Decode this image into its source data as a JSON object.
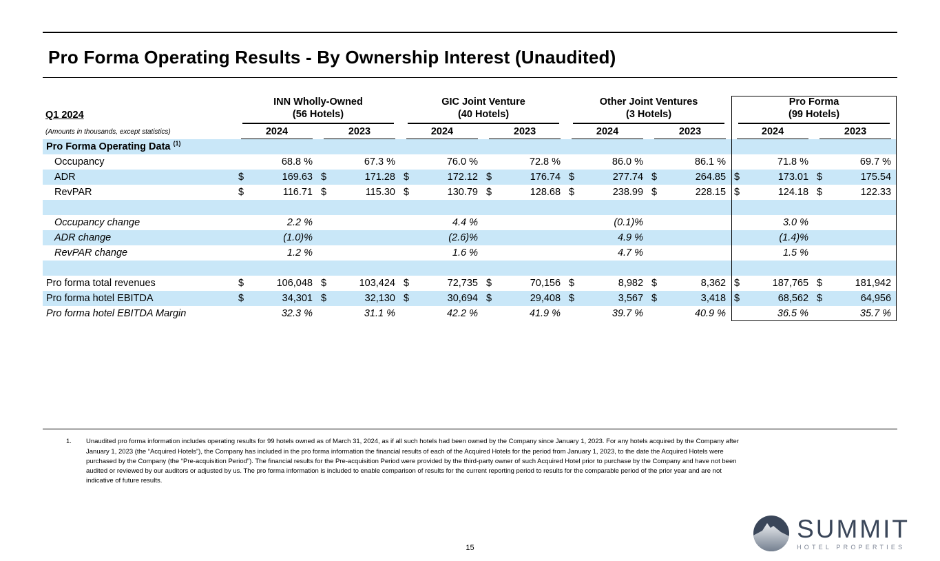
{
  "title": "Pro Forma Operating Results - By Ownership Interest (Unaudited)",
  "table": {
    "period_label": "Q1 2024",
    "amounts_note": "(Amounts in thousands, except statistics)",
    "groups": [
      {
        "name": "INN Wholly-Owned",
        "hotels": "(56 Hotels)",
        "years": [
          "2024",
          "2023"
        ]
      },
      {
        "name": "GIC Joint Venture",
        "hotels": "(40 Hotels)",
        "years": [
          "2024",
          "2023"
        ]
      },
      {
        "name": "Other Joint Ventures",
        "hotels": "(3 Hotels)",
        "years": [
          "2024",
          "2023"
        ]
      },
      {
        "name": "Pro Forma",
        "hotels": "(99 Hotels)",
        "years": [
          "2024",
          "2023"
        ]
      }
    ],
    "rows": [
      {
        "label": "Pro Forma Operating Data",
        "sup": "(1)",
        "style": "bold",
        "stripe": true,
        "cells": []
      },
      {
        "label": "Occupancy",
        "indent": true,
        "cells": [
          {
            "v": "68.8 %"
          },
          {
            "v": "67.3 %"
          },
          {
            "v": "76.0 %"
          },
          {
            "v": "72.8 %"
          },
          {
            "v": "86.0 %"
          },
          {
            "v": "86.1 %"
          },
          {
            "v": "71.8 %"
          },
          {
            "v": "69.7 %"
          }
        ]
      },
      {
        "label": "ADR",
        "indent": true,
        "stripe": true,
        "cells": [
          {
            "d": "$",
            "v": "169.63"
          },
          {
            "d": "$",
            "v": "171.28"
          },
          {
            "d": "$",
            "v": "172.12"
          },
          {
            "d": "$",
            "v": "176.74"
          },
          {
            "d": "$",
            "v": "277.74"
          },
          {
            "d": "$",
            "v": "264.85"
          },
          {
            "d": "$",
            "v": "173.01"
          },
          {
            "d": "$",
            "v": "175.54"
          }
        ]
      },
      {
        "label": "RevPAR",
        "indent": true,
        "cells": [
          {
            "d": "$",
            "v": "116.71"
          },
          {
            "d": "$",
            "v": "115.30"
          },
          {
            "d": "$",
            "v": "130.79"
          },
          {
            "d": "$",
            "v": "128.68"
          },
          {
            "d": "$",
            "v": "238.99"
          },
          {
            "d": "$",
            "v": "228.15"
          },
          {
            "d": "$",
            "v": "124.18"
          },
          {
            "d": "$",
            "v": "122.33"
          }
        ]
      },
      {
        "blank": true,
        "stripe": true,
        "cells": []
      },
      {
        "label": "Occupancy change",
        "indent": true,
        "style": "italic",
        "cells": [
          {
            "v": "2.2 %"
          },
          {},
          {
            "v": "4.4 %"
          },
          {},
          {
            "v": "(0.1)%"
          },
          {},
          {
            "v": "3.0 %"
          },
          {}
        ]
      },
      {
        "label": "ADR change",
        "indent": true,
        "style": "italic",
        "stripe": true,
        "cells": [
          {
            "v": "(1.0)%"
          },
          {},
          {
            "v": "(2.6)%"
          },
          {},
          {
            "v": "4.9 %"
          },
          {},
          {
            "v": "(1.4)%"
          },
          {}
        ]
      },
      {
        "label": "RevPAR change",
        "indent": true,
        "style": "italic",
        "cells": [
          {
            "v": "1.2 %"
          },
          {},
          {
            "v": "1.6 %"
          },
          {},
          {
            "v": "4.7 %"
          },
          {},
          {
            "v": "1.5 %"
          },
          {}
        ]
      },
      {
        "blank": true,
        "stripe": true,
        "cells": []
      },
      {
        "label": "Pro forma total revenues",
        "cells": [
          {
            "d": "$",
            "v": "106,048"
          },
          {
            "d": "$",
            "v": "103,424"
          },
          {
            "d": "$",
            "v": "72,735"
          },
          {
            "d": "$",
            "v": "70,156"
          },
          {
            "d": "$",
            "v": "8,982"
          },
          {
            "d": "$",
            "v": "8,362"
          },
          {
            "d": "$",
            "v": "187,765"
          },
          {
            "d": "$",
            "v": "181,942"
          }
        ]
      },
      {
        "label": "Pro forma hotel EBITDA",
        "stripe": true,
        "cells": [
          {
            "d": "$",
            "v": "34,301"
          },
          {
            "d": "$",
            "v": "32,130"
          },
          {
            "d": "$",
            "v": "30,694"
          },
          {
            "d": "$",
            "v": "29,408"
          },
          {
            "d": "$",
            "v": "3,567"
          },
          {
            "d": "$",
            "v": "3,418"
          },
          {
            "d": "$",
            "v": "68,562"
          },
          {
            "d": "$",
            "v": "64,956"
          }
        ]
      },
      {
        "label": "Pro forma hotel EBITDA Margin",
        "style": "italic",
        "cells": [
          {
            "v": "32.3 %"
          },
          {
            "v": "31.1 %"
          },
          {
            "v": "42.2 %"
          },
          {
            "v": "41.9 %"
          },
          {
            "v": "39.7 %"
          },
          {
            "v": "40.9 %"
          },
          {
            "v": "36.5 %"
          },
          {
            "v": "35.7 %"
          }
        ]
      }
    ]
  },
  "footnote": {
    "number": "1.",
    "text": "Unaudited pro forma information includes operating results for 99 hotels owned as of March 31, 2024, as if all such hotels had been owned by the Company since January 1, 2023. For any hotels acquired by the Company after January 1, 2023 (the “Acquired Hotels”), the Company has included in the pro forma information the financial results of each of the Acquired Hotels for the period from January 1, 2023, to the date the Acquired Hotels were purchased by the Company (the “Pre-acquisition Period”). The financial results for the Pre-acquisition Period were provided by the third-party owner of such Acquired Hotel prior to purchase by the Company and have not been audited or reviewed by our auditors or adjusted by us. The pro forma information is included to enable comparison of results for the current reporting period to results for the comparable period of the prior year and are not indicative of future results."
  },
  "page_number": "15",
  "logo": {
    "name": "SUMMIT",
    "subtitle": "HOTEL PROPERTIES",
    "mountain_icon": "mountain-in-circle"
  },
  "colors": {
    "stripe": "#c9e7f8",
    "logo_navy": "#3a4659",
    "logo_grey": "#7d8595",
    "text": "#000000"
  }
}
